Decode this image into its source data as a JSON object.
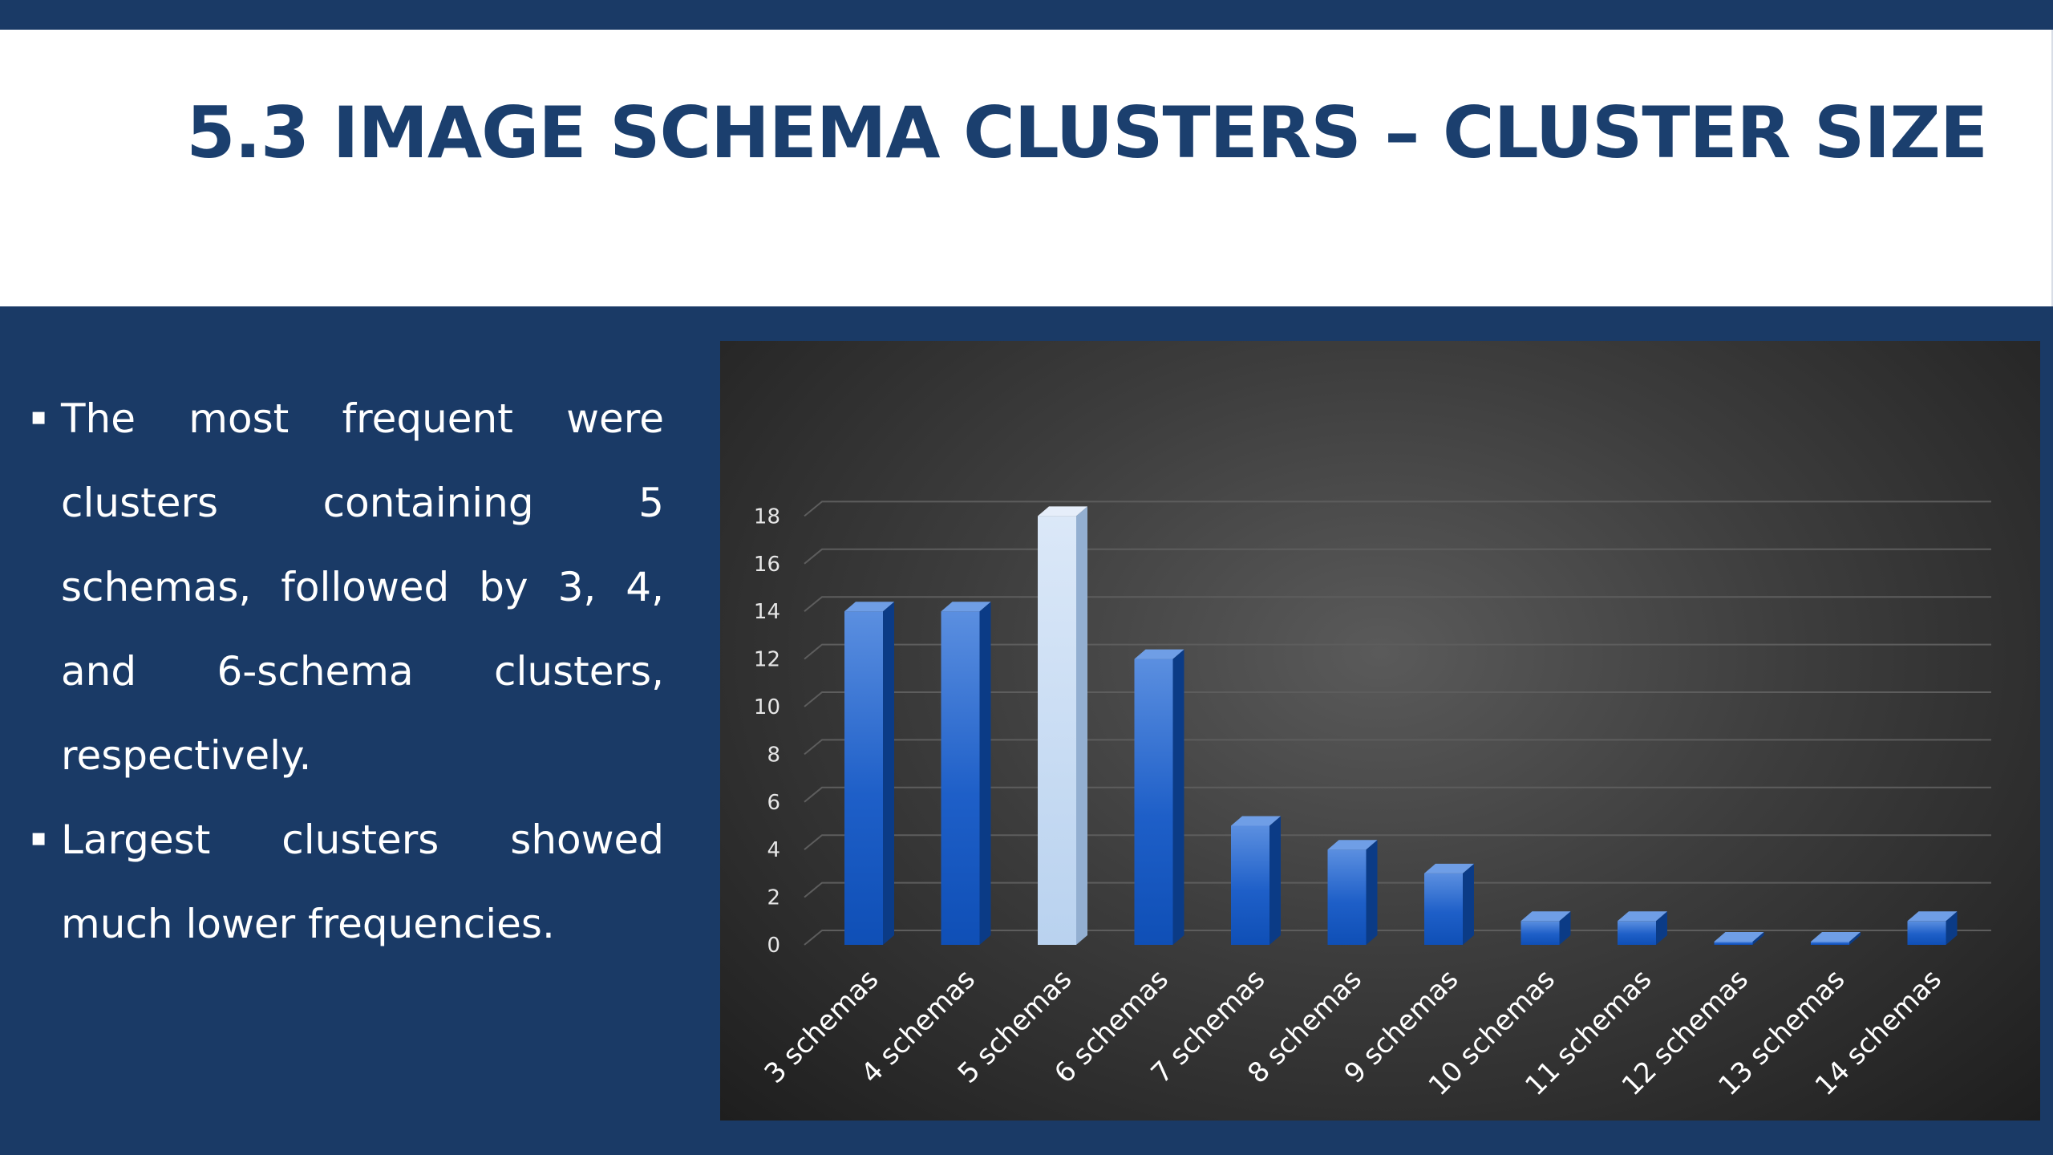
{
  "slide": {
    "title": "5.3 IMAGE SCHEMA CLUSTERS – CLUSTER SIZE",
    "bullets": [
      "The most frequent were clusters containing 5 schemas, followed by 3, 4, and 6-schema clusters, respectively.",
      "Largest clusters showed much lower frequencies."
    ],
    "bullet_marker": "▪"
  },
  "colors": {
    "bar_front": "#1e5fc8",
    "bar_highlight_front": "#c7dcf3",
    "title": "#1b3f6e",
    "background": "#1a3a66"
  },
  "chart_data": {
    "type": "bar",
    "style": "3d-column",
    "categories": [
      "3 schemas",
      "4 schemas",
      "5 schemas",
      "6 schemas",
      "7 schemas",
      "8 schemas",
      "9 schemas",
      "10 schemas",
      "11 schemas",
      "12 schemas",
      "13 schemas",
      "14 schemas"
    ],
    "values": [
      14,
      14,
      18,
      12,
      5,
      4,
      3,
      1,
      1,
      0,
      0,
      1
    ],
    "highlighted_category": "5 schemas",
    "yticks": [
      "0",
      "2",
      "4",
      "6",
      "8",
      "10",
      "12",
      "14",
      "16",
      "18"
    ],
    "ylim": [
      0,
      18
    ],
    "grid": true,
    "legend": "none",
    "title": "",
    "xlabel": "",
    "ylabel": ""
  }
}
